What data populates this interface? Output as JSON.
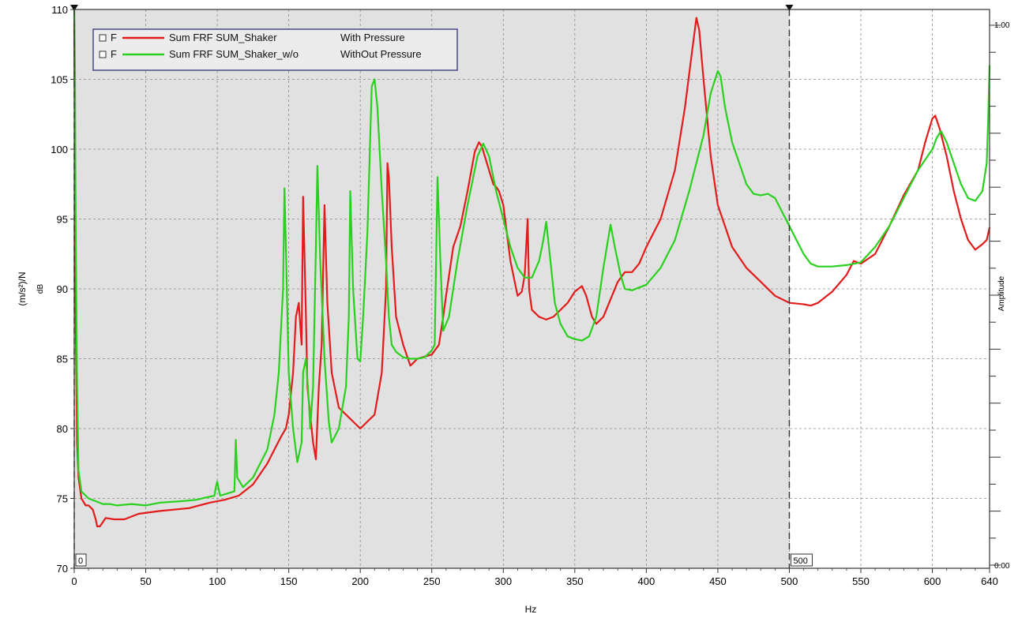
{
  "chart_data": {
    "type": "line",
    "xlabel": "Hz",
    "ylabel": "(m/s²)/N",
    "ylabel_unit": "dB",
    "right_axis_label": "Amplitude",
    "right_axis_ticks": [
      "1.00",
      "0.00"
    ],
    "xlim": [
      0,
      640
    ],
    "ylim": [
      70,
      110
    ],
    "x_ticks": [
      0,
      50,
      100,
      150,
      200,
      250,
      300,
      350,
      400,
      450,
      500,
      550,
      600,
      640
    ],
    "y_ticks": [
      70,
      75,
      80,
      85,
      90,
      95,
      100,
      105,
      110
    ],
    "grid": true,
    "shaded_region": [
      0,
      500
    ],
    "cursors": [
      {
        "x": 0,
        "label": "0"
      },
      {
        "x": 500,
        "label": "500"
      }
    ],
    "legend_position": "top-left",
    "series": [
      {
        "name": "Sum FRF SUM_Shaker",
        "description": "With Pressure",
        "marker": "F",
        "color": "#e31b1b",
        "points": [
          [
            0,
            109
          ],
          [
            0.5,
            100
          ],
          [
            1,
            88
          ],
          [
            2,
            79
          ],
          [
            3,
            76.5
          ],
          [
            5,
            75
          ],
          [
            8,
            74.5
          ],
          [
            10,
            74.5
          ],
          [
            13,
            74.2
          ],
          [
            15,
            73.5
          ],
          [
            16,
            73
          ],
          [
            18,
            73
          ],
          [
            22,
            73.6
          ],
          [
            28,
            73.5
          ],
          [
            35,
            73.5
          ],
          [
            45,
            73.9
          ],
          [
            60,
            74.1
          ],
          [
            80,
            74.3
          ],
          [
            95,
            74.7
          ],
          [
            105,
            74.9
          ],
          [
            115,
            75.2
          ],
          [
            125,
            76
          ],
          [
            135,
            77.5
          ],
          [
            140,
            78.5
          ],
          [
            145,
            79.5
          ],
          [
            148,
            80
          ],
          [
            150,
            81
          ],
          [
            153,
            84
          ],
          [
            155,
            88
          ],
          [
            157,
            89
          ],
          [
            159,
            86
          ],
          [
            160,
            96.6
          ],
          [
            162,
            88
          ],
          [
            163,
            83
          ],
          [
            165,
            81
          ],
          [
            167,
            79
          ],
          [
            169,
            77.8
          ],
          [
            171,
            83
          ],
          [
            173,
            86
          ],
          [
            175,
            96
          ],
          [
            177,
            89
          ],
          [
            180,
            84
          ],
          [
            185,
            81.5
          ],
          [
            190,
            81
          ],
          [
            195,
            80.5
          ],
          [
            200,
            80
          ],
          [
            205,
            80.5
          ],
          [
            210,
            81
          ],
          [
            215,
            84
          ],
          [
            218,
            90
          ],
          [
            219,
            99
          ],
          [
            220,
            98
          ],
          [
            222,
            93
          ],
          [
            225,
            88
          ],
          [
            230,
            86
          ],
          [
            235,
            84.5
          ],
          [
            240,
            85
          ],
          [
            250,
            85.3
          ],
          [
            255,
            86
          ],
          [
            258,
            88
          ],
          [
            260,
            89.5
          ],
          [
            265,
            93
          ],
          [
            270,
            94.5
          ],
          [
            275,
            97
          ],
          [
            280,
            99.8
          ],
          [
            283,
            100.5
          ],
          [
            285,
            100.2
          ],
          [
            290,
            98.5
          ],
          [
            293,
            97.5
          ],
          [
            295,
            97.3
          ],
          [
            297,
            97
          ],
          [
            300,
            96
          ],
          [
            305,
            92
          ],
          [
            310,
            89.5
          ],
          [
            313,
            89.8
          ],
          [
            315,
            91
          ],
          [
            317,
            95
          ],
          [
            318,
            90
          ],
          [
            320,
            88.5
          ],
          [
            325,
            88
          ],
          [
            330,
            87.8
          ],
          [
            335,
            88
          ],
          [
            340,
            88.5
          ],
          [
            345,
            89
          ],
          [
            350,
            89.8
          ],
          [
            355,
            90.2
          ],
          [
            358,
            89.5
          ],
          [
            362,
            88
          ],
          [
            365,
            87.5
          ],
          [
            370,
            88
          ],
          [
            380,
            90.5
          ],
          [
            385,
            91.2
          ],
          [
            390,
            91.2
          ],
          [
            395,
            91.8
          ],
          [
            400,
            93
          ],
          [
            410,
            95
          ],
          [
            420,
            98.5
          ],
          [
            427,
            103
          ],
          [
            432,
            107
          ],
          [
            435,
            109.4
          ],
          [
            437,
            108.5
          ],
          [
            440,
            105
          ],
          [
            445,
            99.5
          ],
          [
            450,
            96
          ],
          [
            460,
            93
          ],
          [
            470,
            91.5
          ],
          [
            480,
            90.5
          ],
          [
            490,
            89.5
          ],
          [
            500,
            89
          ],
          [
            510,
            88.9
          ],
          [
            515,
            88.8
          ],
          [
            520,
            89
          ],
          [
            530,
            89.8
          ],
          [
            540,
            91
          ],
          [
            545,
            92
          ],
          [
            550,
            91.8
          ],
          [
            560,
            92.5
          ],
          [
            570,
            94.5
          ],
          [
            580,
            96.7
          ],
          [
            590,
            98.5
          ],
          [
            595,
            100.5
          ],
          [
            600,
            102.2
          ],
          [
            602,
            102.4
          ],
          [
            605,
            101.5
          ],
          [
            610,
            99.5
          ],
          [
            615,
            97
          ],
          [
            620,
            95
          ],
          [
            625,
            93.5
          ],
          [
            630,
            92.8
          ],
          [
            635,
            93.2
          ],
          [
            638,
            93.5
          ],
          [
            640,
            94.4
          ]
        ]
      },
      {
        "name": "Sum FRF SUM_Shaker_w/o",
        "description": "WithOut Pressure",
        "marker": "F",
        "color": "#29d11e",
        "points": [
          [
            0,
            110
          ],
          [
            0.5,
            106
          ],
          [
            1,
            95
          ],
          [
            2,
            83
          ],
          [
            3,
            77
          ],
          [
            5,
            75.5
          ],
          [
            10,
            75
          ],
          [
            15,
            74.8
          ],
          [
            20,
            74.6
          ],
          [
            25,
            74.6
          ],
          [
            30,
            74.5
          ],
          [
            40,
            74.6
          ],
          [
            50,
            74.5
          ],
          [
            60,
            74.7
          ],
          [
            75,
            74.8
          ],
          [
            85,
            74.9
          ],
          [
            98,
            75.2
          ],
          [
            99,
            75.8
          ],
          [
            100,
            76.2
          ],
          [
            102,
            75.2
          ],
          [
            112,
            75.5
          ],
          [
            113,
            79.2
          ],
          [
            114,
            76.5
          ],
          [
            118,
            75.8
          ],
          [
            125,
            76.5
          ],
          [
            135,
            78.5
          ],
          [
            140,
            81
          ],
          [
            143,
            84
          ],
          [
            146,
            90
          ],
          [
            147,
            97.2
          ],
          [
            148,
            93
          ],
          [
            150,
            84
          ],
          [
            153,
            80
          ],
          [
            156,
            77.6
          ],
          [
            159,
            79
          ],
          [
            160,
            84
          ],
          [
            162,
            85
          ],
          [
            164,
            82
          ],
          [
            165,
            80
          ],
          [
            167,
            83
          ],
          [
            169,
            93
          ],
          [
            170,
            98.8
          ],
          [
            172,
            92
          ],
          [
            175,
            85
          ],
          [
            178,
            80.5
          ],
          [
            180,
            79
          ],
          [
            185,
            80
          ],
          [
            190,
            83
          ],
          [
            192,
            88
          ],
          [
            193,
            97
          ],
          [
            195,
            90
          ],
          [
            198,
            85
          ],
          [
            200,
            84.8
          ],
          [
            202,
            88
          ],
          [
            205,
            94
          ],
          [
            208,
            104.5
          ],
          [
            210,
            105
          ],
          [
            212,
            103
          ],
          [
            215,
            97
          ],
          [
            218,
            92
          ],
          [
            220,
            88
          ],
          [
            222,
            86
          ],
          [
            225,
            85.5
          ],
          [
            230,
            85.1
          ],
          [
            235,
            85
          ],
          [
            240,
            85
          ],
          [
            245,
            85.1
          ],
          [
            250,
            85.6
          ],
          [
            252,
            86
          ],
          [
            254,
            98
          ],
          [
            256,
            92
          ],
          [
            258,
            87
          ],
          [
            262,
            88
          ],
          [
            268,
            92
          ],
          [
            275,
            96
          ],
          [
            282,
            99.5
          ],
          [
            286,
            100.4
          ],
          [
            290,
            99.5
          ],
          [
            295,
            97
          ],
          [
            300,
            95
          ],
          [
            305,
            93
          ],
          [
            310,
            91.5
          ],
          [
            315,
            90.8
          ],
          [
            320,
            90.8
          ],
          [
            325,
            92
          ],
          [
            328,
            93.5
          ],
          [
            330,
            94.8
          ],
          [
            333,
            92
          ],
          [
            336,
            89
          ],
          [
            340,
            87.5
          ],
          [
            345,
            86.6
          ],
          [
            350,
            86.4
          ],
          [
            355,
            86.3
          ],
          [
            360,
            86.6
          ],
          [
            365,
            88
          ],
          [
            370,
            91.5
          ],
          [
            375,
            94.6
          ],
          [
            378,
            93
          ],
          [
            382,
            91
          ],
          [
            385,
            90
          ],
          [
            390,
            89.9
          ],
          [
            400,
            90.3
          ],
          [
            410,
            91.5
          ],
          [
            420,
            93.5
          ],
          [
            430,
            97
          ],
          [
            440,
            101
          ],
          [
            445,
            104
          ],
          [
            450,
            105.6
          ],
          [
            452,
            105.2
          ],
          [
            455,
            103
          ],
          [
            460,
            100.5
          ],
          [
            465,
            99
          ],
          [
            470,
            97.5
          ],
          [
            475,
            96.8
          ],
          [
            480,
            96.7
          ],
          [
            485,
            96.8
          ],
          [
            490,
            96.5
          ],
          [
            495,
            95.5
          ],
          [
            500,
            94.5
          ],
          [
            505,
            93.5
          ],
          [
            510,
            92.5
          ],
          [
            515,
            91.8
          ],
          [
            520,
            91.6
          ],
          [
            530,
            91.6
          ],
          [
            540,
            91.7
          ],
          [
            550,
            91.9
          ],
          [
            560,
            93
          ],
          [
            570,
            94.5
          ],
          [
            580,
            96.5
          ],
          [
            590,
            98.5
          ],
          [
            600,
            100
          ],
          [
            603,
            100.8
          ],
          [
            606,
            101.3
          ],
          [
            610,
            100.5
          ],
          [
            615,
            99
          ],
          [
            620,
            97.5
          ],
          [
            625,
            96.5
          ],
          [
            630,
            96.3
          ],
          [
            635,
            97
          ],
          [
            638,
            99
          ],
          [
            639,
            102
          ],
          [
            640,
            106
          ]
        ]
      }
    ]
  }
}
